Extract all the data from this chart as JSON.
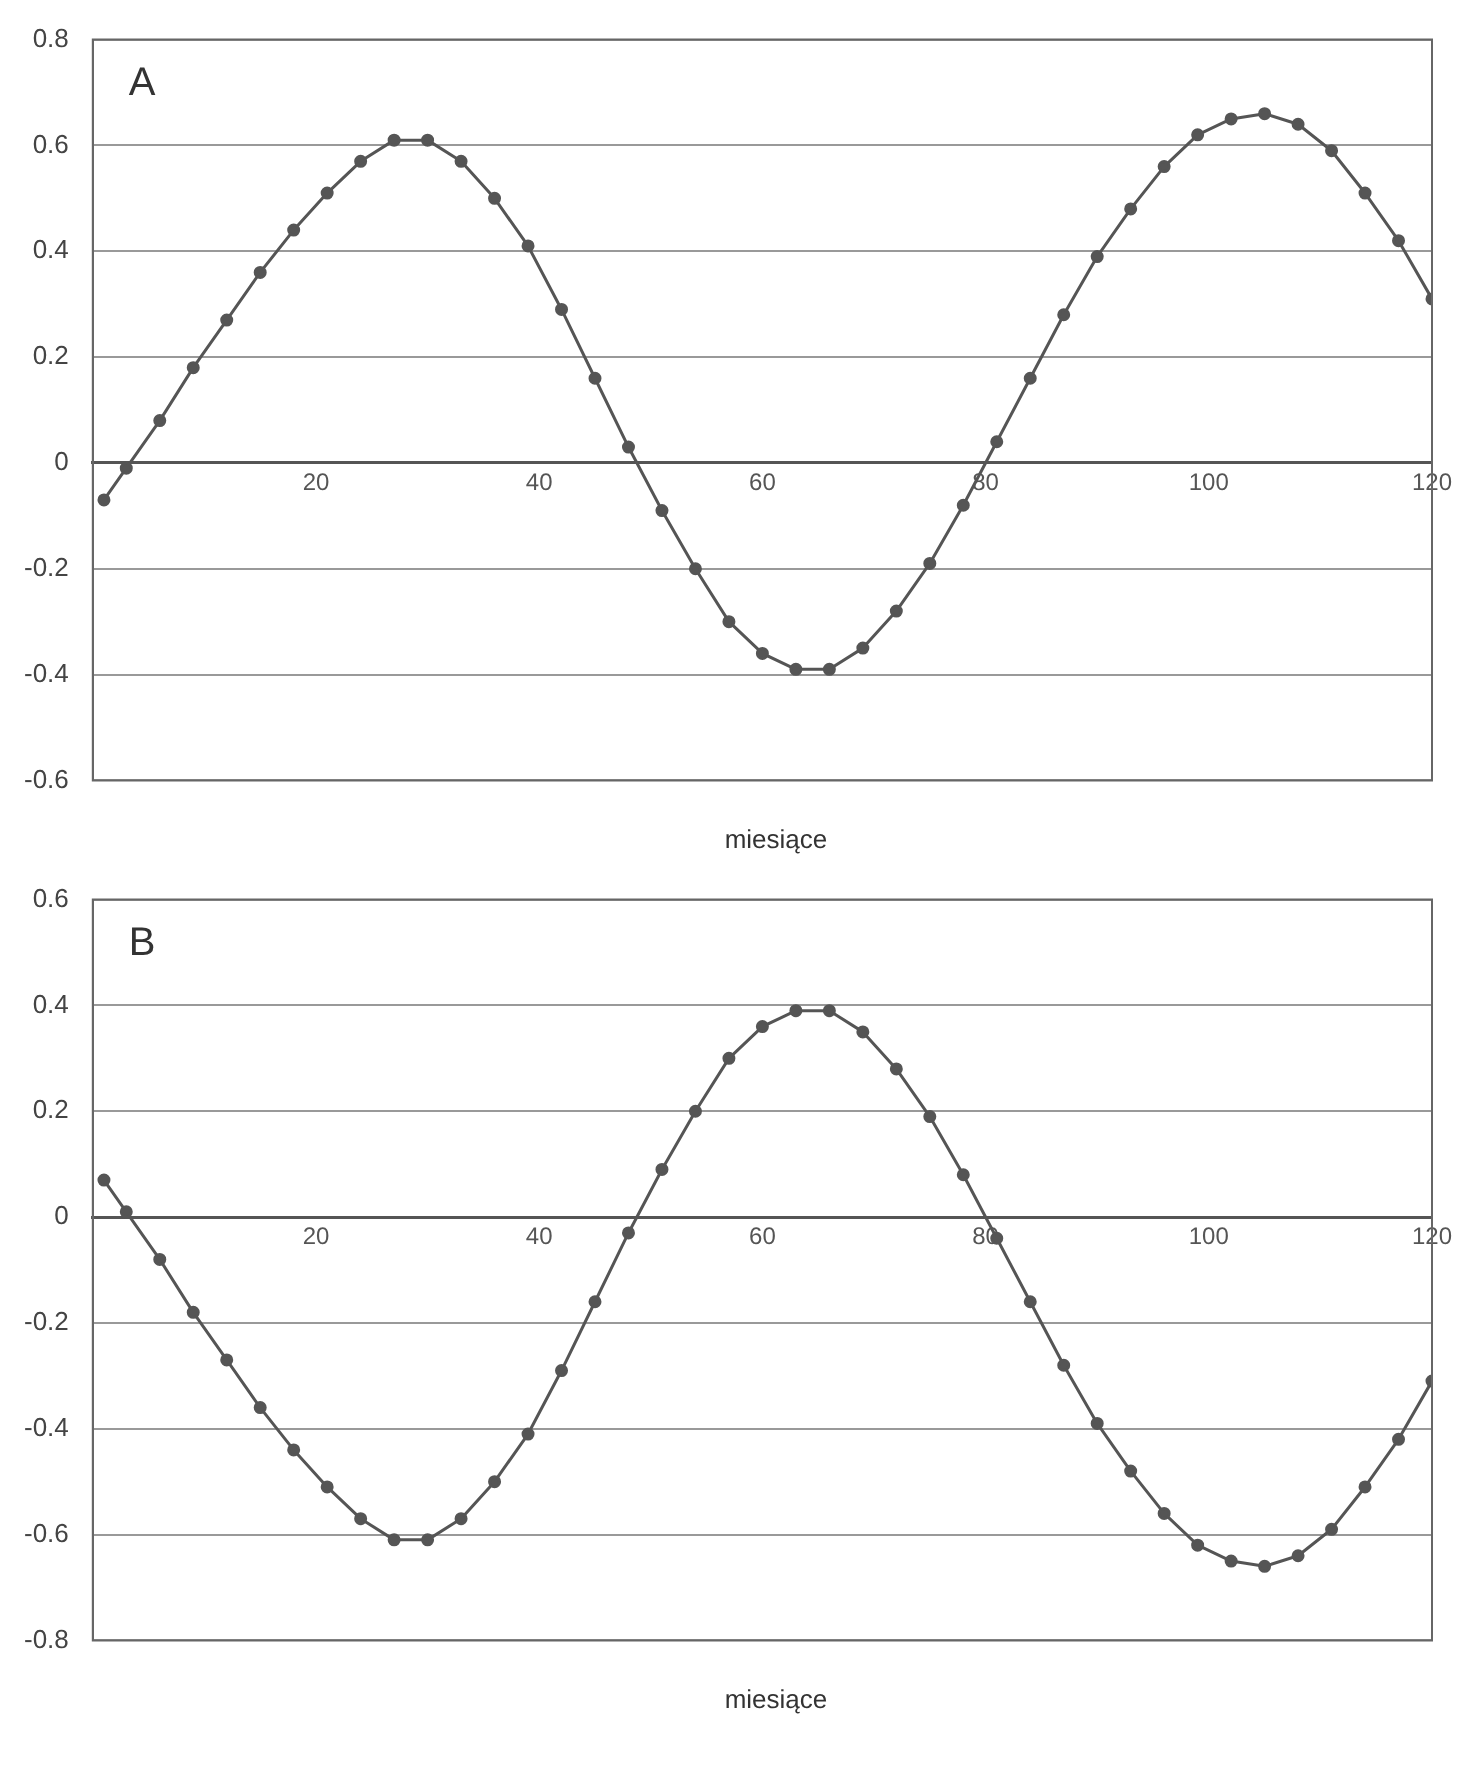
{
  "chart_data": [
    {
      "type": "line",
      "title": "A",
      "xlabel": "miesiące",
      "xlim": [
        0,
        120
      ],
      "xticks": [
        20,
        40,
        60,
        80,
        100,
        120
      ],
      "ylim": [
        -0.6,
        0.8
      ],
      "yticks": [
        -0.6,
        -0.4,
        -0.2,
        0,
        0.2,
        0.4,
        0.6,
        0.8
      ],
      "grid": "y",
      "marker": "circle",
      "line_style": "solid",
      "series": [
        {
          "color": "#555555",
          "x": [
            1,
            3,
            6,
            9,
            12,
            15,
            18,
            21,
            24,
            27,
            30,
            33,
            36,
            39,
            42,
            45,
            48,
            51,
            54,
            57,
            60,
            63,
            66,
            69,
            72,
            75,
            78,
            81,
            84,
            87,
            90,
            93,
            96,
            99,
            102,
            105,
            108,
            111,
            114,
            117,
            120
          ],
          "values": [
            -0.07,
            -0.01,
            0.08,
            0.18,
            0.27,
            0.36,
            0.44,
            0.51,
            0.57,
            0.61,
            0.61,
            0.57,
            0.5,
            0.41,
            0.29,
            0.16,
            0.03,
            -0.09,
            -0.2,
            -0.3,
            -0.36,
            -0.39,
            -0.39,
            -0.35,
            -0.28,
            -0.19,
            -0.08,
            0.04,
            0.16,
            0.28,
            0.39,
            0.48,
            0.56,
            0.62,
            0.65,
            0.66,
            0.64,
            0.59,
            0.51,
            0.42,
            0.31
          ]
        }
      ]
    },
    {
      "type": "line",
      "title": "B",
      "xlabel": "miesiące",
      "xlim": [
        0,
        120
      ],
      "xticks": [
        20,
        40,
        60,
        80,
        100,
        120
      ],
      "ylim": [
        -0.8,
        0.6
      ],
      "yticks": [
        -0.8,
        -0.6,
        -0.4,
        -0.2,
        0,
        0.2,
        0.4,
        0.6
      ],
      "grid": "y",
      "marker": "circle",
      "line_style": "solid",
      "series": [
        {
          "color": "#555555",
          "x": [
            1,
            3,
            6,
            9,
            12,
            15,
            18,
            21,
            24,
            27,
            30,
            33,
            36,
            39,
            42,
            45,
            48,
            51,
            54,
            57,
            60,
            63,
            66,
            69,
            72,
            75,
            78,
            81,
            84,
            87,
            90,
            93,
            96,
            99,
            102,
            105,
            108,
            111,
            114,
            117,
            120
          ],
          "values": [
            0.07,
            0.01,
            -0.08,
            -0.18,
            -0.27,
            -0.36,
            -0.44,
            -0.51,
            -0.57,
            -0.61,
            -0.61,
            -0.57,
            -0.5,
            -0.41,
            -0.29,
            -0.16,
            -0.03,
            0.09,
            0.2,
            0.3,
            0.36,
            0.39,
            0.39,
            0.35,
            0.28,
            0.19,
            0.08,
            -0.04,
            -0.16,
            -0.28,
            -0.39,
            -0.48,
            -0.56,
            -0.62,
            -0.65,
            -0.66,
            -0.64,
            -0.59,
            -0.51,
            -0.42,
            -0.31
          ]
        }
      ]
    }
  ]
}
